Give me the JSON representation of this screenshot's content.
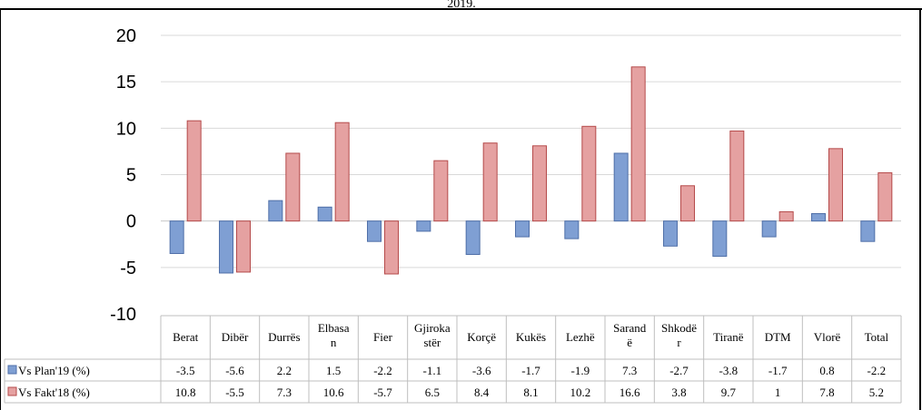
{
  "page_top_text": "2019.",
  "chart_data": {
    "type": "bar",
    "categories": [
      [
        "Berat"
      ],
      [
        "Dibër"
      ],
      [
        "Durrës"
      ],
      [
        "Elbasa",
        "n"
      ],
      [
        "Fier"
      ],
      [
        "Gjiroka",
        "stër"
      ],
      [
        "Korçë"
      ],
      [
        "Kukës"
      ],
      [
        "Lezhë"
      ],
      [
        "Sarand",
        "ë"
      ],
      [
        "Shkodë",
        "r"
      ],
      [
        "Tiranë"
      ],
      [
        "DTM"
      ],
      [
        "Vlorë"
      ],
      [
        "Total"
      ]
    ],
    "series": [
      {
        "name": "Vs Plan'19 (%)",
        "color": "#7f9fd3",
        "values": [
          -3.5,
          -5.6,
          2.2,
          1.5,
          -2.2,
          -1.1,
          -3.6,
          -1.7,
          -1.9,
          7.3,
          -2.7,
          -3.8,
          -1.7,
          0.8,
          -2.2
        ],
        "labels": [
          "-3.5",
          "-5.6",
          "2.2",
          "1.5",
          "-2.2",
          "-1.1",
          "-3.6",
          "-1.7",
          "-1.9",
          "7.3",
          "-2.7",
          "-3.8",
          "-1.7",
          "0.8",
          "-2.2"
        ]
      },
      {
        "name": "Vs Fakt'18 (%)",
        "color": "#e5a1a1",
        "values": [
          10.8,
          -5.5,
          7.3,
          10.6,
          -5.7,
          6.5,
          8.4,
          8.1,
          10.2,
          16.6,
          3.8,
          9.7,
          1,
          7.8,
          5.2
        ],
        "labels": [
          "10.8",
          "-5.5",
          "7.3",
          "10.6",
          "-5.7",
          "6.5",
          "8.4",
          "8.1",
          "10.2",
          "16.6",
          "3.8",
          "9.7",
          "1",
          "7.8",
          "5.2"
        ]
      }
    ],
    "ylim": [
      -10,
      20
    ],
    "yticks": [
      20,
      15,
      10,
      5,
      0,
      -5,
      -10
    ],
    "grid": true,
    "legend": "data-table-left"
  }
}
